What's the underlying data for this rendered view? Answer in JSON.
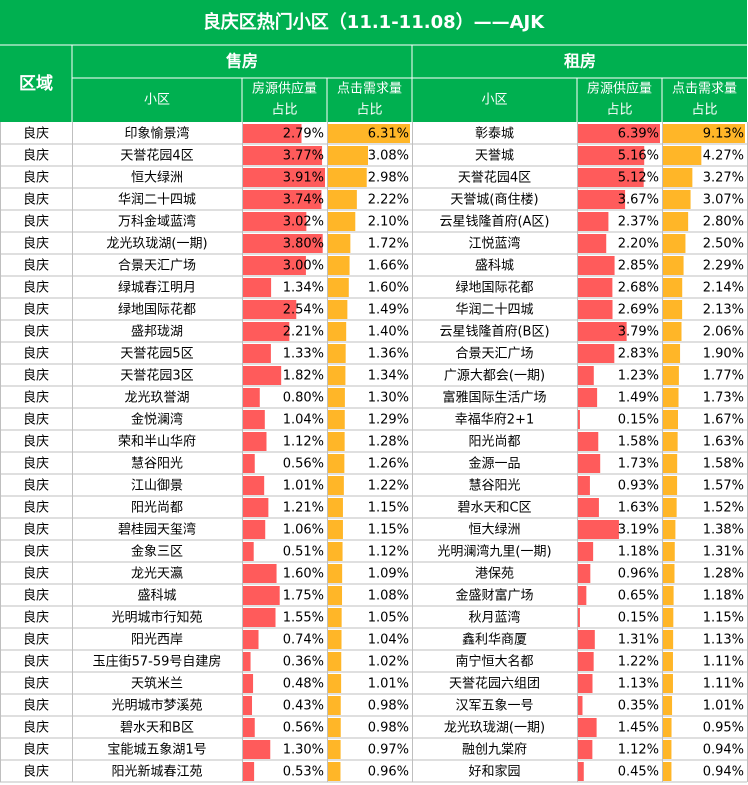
{
  "header": {
    "title": "良庆区热门小区（11.1-11.08）——AJK",
    "region": "区域",
    "sale": "售房",
    "rent": "租房",
    "community": "小区",
    "supply": [
      "房源供应量",
      "占比"
    ],
    "demand": [
      "点击需求量",
      "占比"
    ]
  },
  "table": {
    "rows": [
      [
        "良庆",
        "印象愉景湾",
        "2.79%",
        "6.31%",
        "彰泰城",
        "6.39%",
        "9.13%"
      ],
      [
        "良庆",
        "天誉花园4区",
        "3.77%",
        "3.08%",
        "天誉城",
        "5.16%",
        "4.27%"
      ],
      [
        "良庆",
        "恒大绿洲",
        "3.91%",
        "2.98%",
        "天誉花园4区",
        "5.12%",
        "3.27%"
      ],
      [
        "良庆",
        "华润二十四城",
        "3.74%",
        "2.22%",
        "天誉城(商住楼)",
        "3.67%",
        "3.07%"
      ],
      [
        "良庆",
        "万科金域蓝湾",
        "3.02%",
        "2.10%",
        "云星钱隆首府(A区)",
        "2.37%",
        "2.80%"
      ],
      [
        "良庆",
        "龙光玖珑湖(一期)",
        "3.80%",
        "1.72%",
        "江悦蓝湾",
        "2.20%",
        "2.50%"
      ],
      [
        "良庆",
        "合景天汇广场",
        "3.00%",
        "1.66%",
        "盛科城",
        "2.85%",
        "2.29%"
      ],
      [
        "良庆",
        "绿城春江明月",
        "1.34%",
        "1.60%",
        "绿地国际花都",
        "2.68%",
        "2.14%"
      ],
      [
        "良庆",
        "绿地国际花都",
        "2.54%",
        "1.49%",
        "华润二十四城",
        "2.69%",
        "2.13%"
      ],
      [
        "良庆",
        "盛邦珑湖",
        "2.21%",
        "1.40%",
        "云星钱隆首府(B区)",
        "3.79%",
        "2.06%"
      ],
      [
        "良庆",
        "天誉花园5区",
        "1.33%",
        "1.36%",
        "合景天汇广场",
        "2.83%",
        "1.90%"
      ],
      [
        "良庆",
        "天誉花园3区",
        "1.82%",
        "1.34%",
        "广源大都会(一期)",
        "1.23%",
        "1.77%"
      ],
      [
        "良庆",
        "龙光玖誉湖",
        "0.80%",
        "1.30%",
        "富雅国际生活广场",
        "1.49%",
        "1.73%"
      ],
      [
        "良庆",
        "金悦澜湾",
        "1.04%",
        "1.29%",
        "幸福华府2+1",
        "0.15%",
        "1.67%"
      ],
      [
        "良庆",
        "荣和半山华府",
        "1.12%",
        "1.28%",
        "阳光尚都",
        "1.58%",
        "1.63%"
      ],
      [
        "良庆",
        "慧谷阳光",
        "0.56%",
        "1.26%",
        "金源一品",
        "1.73%",
        "1.58%"
      ],
      [
        "良庆",
        "江山御景",
        "1.01%",
        "1.22%",
        "慧谷阳光",
        "0.93%",
        "1.57%"
      ],
      [
        "良庆",
        "阳光尚都",
        "1.21%",
        "1.15%",
        "碧水天和C区",
        "1.63%",
        "1.52%"
      ],
      [
        "良庆",
        "碧桂园天玺湾",
        "1.06%",
        "1.15%",
        "恒大绿洲",
        "3.19%",
        "1.38%"
      ],
      [
        "良庆",
        "金象三区",
        "0.51%",
        "1.12%",
        "光明澜湾九里(一期)",
        "1.18%",
        "1.31%"
      ],
      [
        "良庆",
        "龙光天瀛",
        "1.60%",
        "1.09%",
        "港保苑",
        "0.96%",
        "1.28%"
      ],
      [
        "良庆",
        "盛科城",
        "1.75%",
        "1.08%",
        "金盛财富广场",
        "0.65%",
        "1.18%"
      ],
      [
        "良庆",
        "光明城市行知苑",
        "1.55%",
        "1.05%",
        "秋月蓝湾",
        "0.15%",
        "1.15%"
      ],
      [
        "良庆",
        "阳光西岸",
        "0.74%",
        "1.04%",
        "鑫利华商厦",
        "1.31%",
        "1.13%"
      ],
      [
        "良庆",
        "玉庄街57-59号自建房",
        "0.36%",
        "1.02%",
        "南宁恒大名都",
        "1.22%",
        "1.11%"
      ],
      [
        "良庆",
        "天筑米兰",
        "0.48%",
        "1.01%",
        "天誉花园六组团",
        "1.13%",
        "1.11%"
      ],
      [
        "良庆",
        "光明城市梦溪苑",
        "0.43%",
        "0.98%",
        "汉军五象一号",
        "0.35%",
        "1.01%"
      ],
      [
        "良庆",
        "碧水天和B区",
        "0.56%",
        "0.98%",
        "龙光玖珑湖(一期)",
        "1.45%",
        "0.95%"
      ],
      [
        "良庆",
        "宝能城五象湖1号",
        "1.30%",
        "0.97%",
        "融创九棠府",
        "1.12%",
        "0.94%"
      ],
      [
        "良庆",
        "阳光新城春江苑",
        "0.53%",
        "0.96%",
        "好和家园",
        "0.45%",
        "0.94%"
      ]
    ]
  }
}
